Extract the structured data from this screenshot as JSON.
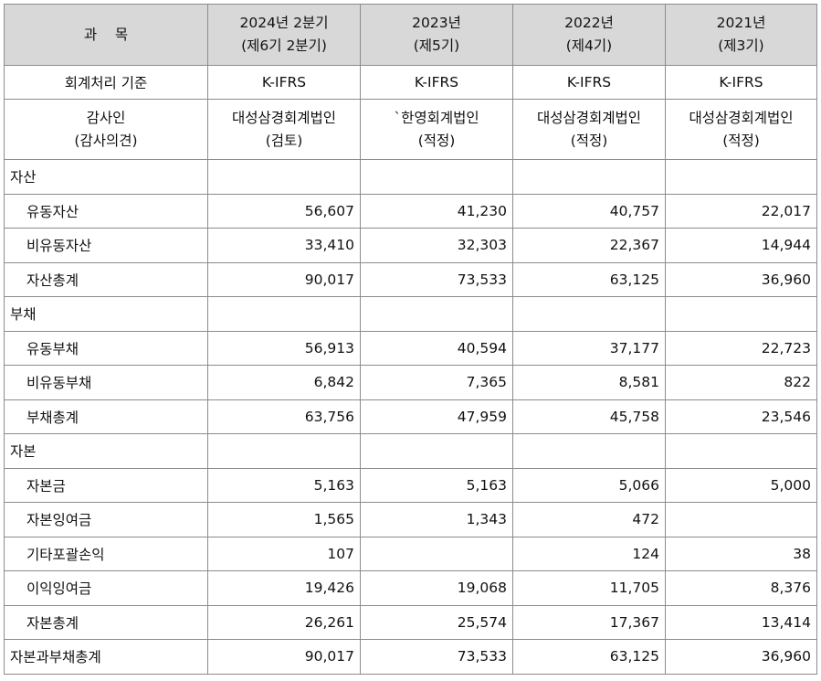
{
  "header": {
    "subject": "과    목",
    "periods": [
      {
        "line1": "2024년 2분기",
        "line2": "(제6기 2분기)"
      },
      {
        "line1": "2023년",
        "line2": "(제5기)"
      },
      {
        "line1": "2022년",
        "line2": "(제4기)"
      },
      {
        "line1": "2021년",
        "line2": "(제3기)"
      }
    ]
  },
  "accounting_standard": {
    "label": "회계처리 기준",
    "values": [
      "K-IFRS",
      "K-IFRS",
      "K-IFRS",
      "K-IFRS"
    ]
  },
  "auditor": {
    "label_line1": "감사인",
    "label_line2": "(감사의견)",
    "values": [
      {
        "name": "대성삼경회계법인",
        "opinion": "(검토)"
      },
      {
        "name": "`한영회계법인",
        "opinion": "(적정)"
      },
      {
        "name": "대성삼경회계법인",
        "opinion": "(적정)"
      },
      {
        "name": "대성삼경회계법인",
        "opinion": "(적정)"
      }
    ]
  },
  "rows": [
    {
      "label": "자산",
      "indent": false,
      "values": [
        "",
        "",
        "",
        ""
      ]
    },
    {
      "label": "유동자산",
      "indent": true,
      "values": [
        "56,607",
        "41,230",
        "40,757",
        "22,017"
      ]
    },
    {
      "label": "비유동자산",
      "indent": true,
      "values": [
        "33,410",
        "32,303",
        "22,367",
        "14,944"
      ]
    },
    {
      "label": "자산총계",
      "indent": true,
      "values": [
        "90,017",
        "73,533",
        "63,125",
        "36,960"
      ]
    },
    {
      "label": "부채",
      "indent": false,
      "values": [
        "",
        "",
        "",
        ""
      ]
    },
    {
      "label": "유동부채",
      "indent": true,
      "values": [
        "56,913",
        "40,594",
        "37,177",
        "22,723"
      ]
    },
    {
      "label": "비유동부채",
      "indent": true,
      "values": [
        "6,842",
        "7,365",
        "8,581",
        "822"
      ]
    },
    {
      "label": "부채총계",
      "indent": true,
      "values": [
        "63,756",
        "47,959",
        "45,758",
        "23,546"
      ]
    },
    {
      "label": "자본",
      "indent": false,
      "values": [
        "",
        "",
        "",
        ""
      ]
    },
    {
      "label": "자본금",
      "indent": true,
      "values": [
        "5,163",
        "5,163",
        "5,066",
        "5,000"
      ]
    },
    {
      "label": "자본잉여금",
      "indent": true,
      "values": [
        "1,565",
        "1,343",
        "472",
        ""
      ]
    },
    {
      "label": "기타포괄손익",
      "indent": true,
      "values": [
        "107",
        "",
        "124",
        "38"
      ]
    },
    {
      "label": "이익잉여금",
      "indent": true,
      "values": [
        "19,426",
        "19,068",
        "11,705",
        "8,376"
      ]
    },
    {
      "label": "자본총계",
      "indent": true,
      "values": [
        "26,261",
        "25,574",
        "17,367",
        "13,414"
      ]
    },
    {
      "label": "자본과부채총계",
      "indent": false,
      "values": [
        "90,017",
        "73,533",
        "63,125",
        "36,960"
      ]
    }
  ]
}
